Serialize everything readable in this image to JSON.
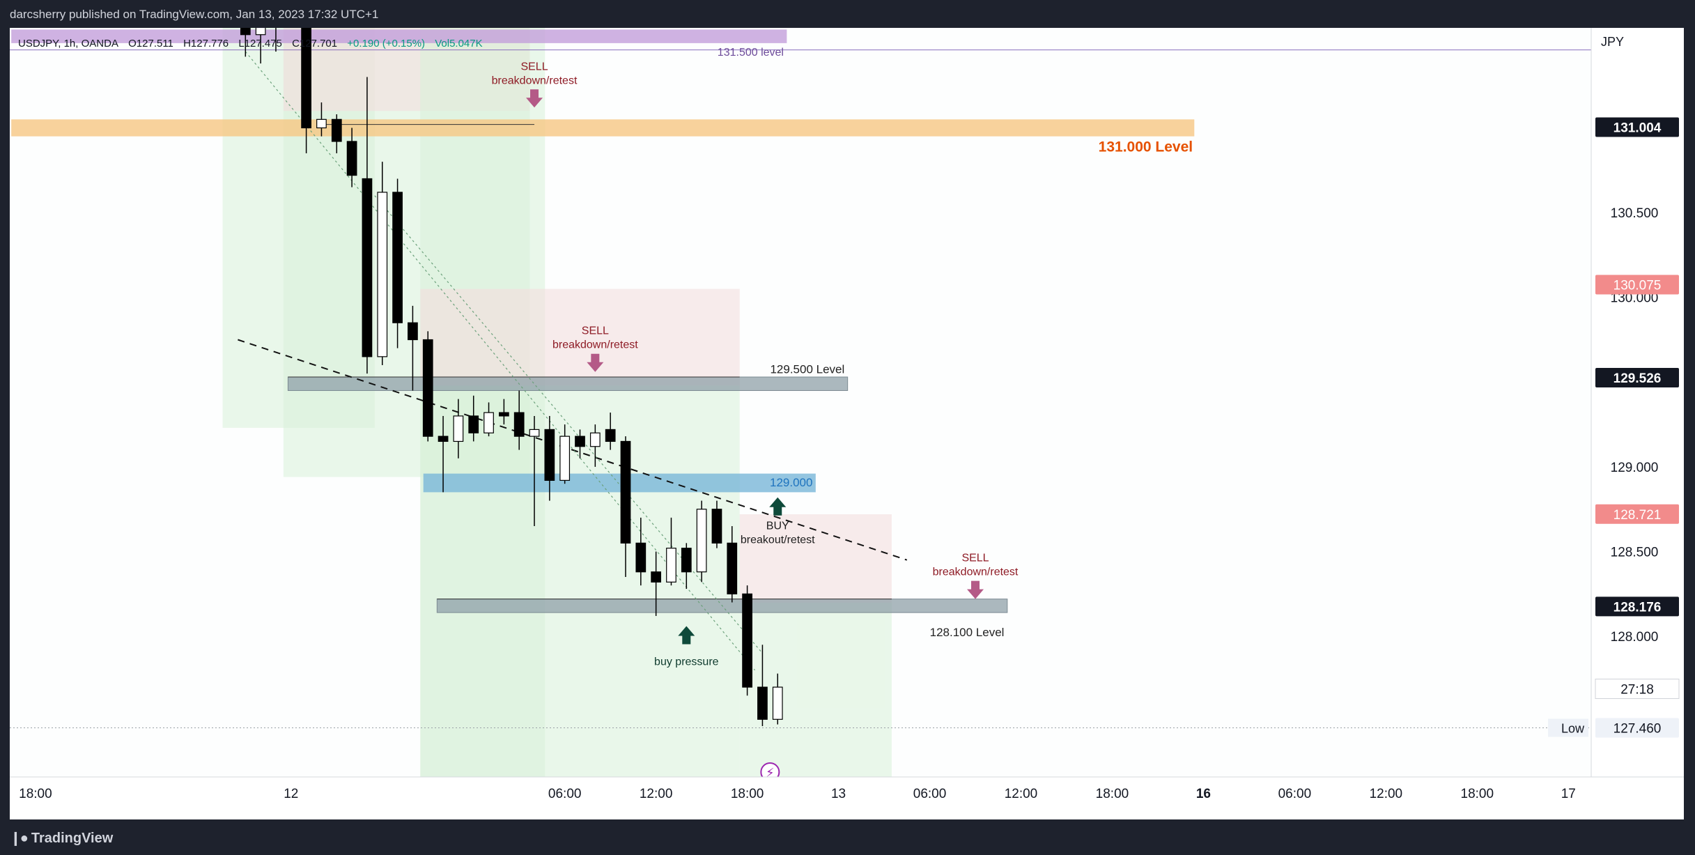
{
  "header": {
    "published_line": "darcsherry published on TradingView.com, Jan 13, 2023 17:32 UTC+1"
  },
  "legend": {
    "symbol": "USDJPY, 1h, OANDA",
    "open": "O127.511",
    "high": "H127.776",
    "low": "L127.475",
    "close": "C127.701",
    "change": "+0.190 (+0.15%)",
    "volume": "Vol5.047K"
  },
  "footer": {
    "brand": "TradingView"
  },
  "colors": {
    "bull_body": "#ffffff",
    "bear_body": "#000000",
    "resistance_zone": "#f6c783",
    "support_zone": "#8fa0a8",
    "breakout_zone": "#79b7d8",
    "purple_zone": "#c39fdb",
    "green_band": "#d8f1d8",
    "red_band": "#f3dede",
    "sell_text": "#8e1b25",
    "buy_text": "#0f3b2e",
    "sell_arrow": "#b45a87",
    "buy_arrow": "#0e4a3a",
    "level_orange": "#e65100",
    "level_blue": "#1e73be"
  },
  "chart_data": {
    "type": "candlestick",
    "symbol": "USDJPY",
    "interval": "1h",
    "currency_label": "JPY",
    "ylim": [
      127.17,
      131.59
    ],
    "y_ticks": [
      128.0,
      128.5,
      129.0,
      129.5,
      130.0,
      130.5
    ],
    "x_ticks": [
      "18:00",
      "12",
      "06:00",
      "12:00",
      "18:00",
      "13",
      "06:00",
      "12:00",
      "18:00",
      "16",
      "06:00",
      "12:00",
      "18:00",
      "17"
    ],
    "x_tick_hours": [
      -6,
      12,
      30,
      36,
      42,
      48,
      54,
      60,
      66,
      72,
      78,
      84,
      90,
      96
    ],
    "x_range_hours": [
      -6.5,
      97.5
    ],
    "candles": [
      {
        "t": 9,
        "o": 131.7,
        "h": 131.78,
        "l": 131.42,
        "c": 131.55
      },
      {
        "t": 10,
        "o": 131.55,
        "h": 131.75,
        "l": 131.38,
        "c": 131.6
      },
      {
        "t": 11,
        "o": 131.6,
        "h": 131.85,
        "l": 131.45,
        "c": 131.7
      },
      {
        "t": 13,
        "o": 131.6,
        "h": 131.8,
        "l": 130.85,
        "c": 131.0
      },
      {
        "t": 14,
        "o": 131.0,
        "h": 131.15,
        "l": 130.95,
        "c": 131.05
      },
      {
        "t": 15,
        "o": 131.05,
        "h": 131.08,
        "l": 130.85,
        "c": 130.92
      },
      {
        "t": 16,
        "o": 130.92,
        "h": 131.0,
        "l": 130.65,
        "c": 130.72
      },
      {
        "t": 17,
        "o": 130.7,
        "h": 131.3,
        "l": 129.55,
        "c": 129.65
      },
      {
        "t": 18,
        "o": 129.65,
        "h": 130.8,
        "l": 129.6,
        "c": 130.62
      },
      {
        "t": 19,
        "o": 130.62,
        "h": 130.7,
        "l": 129.7,
        "c": 129.85
      },
      {
        "t": 20,
        "o": 129.85,
        "h": 129.95,
        "l": 129.45,
        "c": 129.75
      },
      {
        "t": 21,
        "o": 129.75,
        "h": 129.8,
        "l": 129.15,
        "c": 129.18
      },
      {
        "t": 22,
        "o": 129.18,
        "h": 129.3,
        "l": 128.85,
        "c": 129.15
      },
      {
        "t": 23,
        "o": 129.15,
        "h": 129.4,
        "l": 129.05,
        "c": 129.3
      },
      {
        "t": 24,
        "o": 129.3,
        "h": 129.42,
        "l": 129.15,
        "c": 129.2
      },
      {
        "t": 25,
        "o": 129.2,
        "h": 129.38,
        "l": 129.18,
        "c": 129.32
      },
      {
        "t": 26,
        "o": 129.32,
        "h": 129.4,
        "l": 129.25,
        "c": 129.3
      },
      {
        "t": 27,
        "o": 129.32,
        "h": 129.45,
        "l": 129.1,
        "c": 129.18
      },
      {
        "t": 28,
        "o": 129.18,
        "h": 129.3,
        "l": 128.65,
        "c": 129.22
      },
      {
        "t": 29,
        "o": 129.22,
        "h": 129.3,
        "l": 128.8,
        "c": 128.92
      },
      {
        "t": 30,
        "o": 128.92,
        "h": 129.25,
        "l": 128.9,
        "c": 129.18
      },
      {
        "t": 31,
        "o": 129.18,
        "h": 129.22,
        "l": 129.05,
        "c": 129.12
      },
      {
        "t": 32,
        "o": 129.12,
        "h": 129.25,
        "l": 129.0,
        "c": 129.2
      },
      {
        "t": 33,
        "o": 129.22,
        "h": 129.32,
        "l": 129.1,
        "c": 129.15
      },
      {
        "t": 34,
        "o": 129.15,
        "h": 129.18,
        "l": 128.35,
        "c": 128.55
      },
      {
        "t": 35,
        "o": 128.55,
        "h": 128.7,
        "l": 128.3,
        "c": 128.38
      },
      {
        "t": 36,
        "o": 128.38,
        "h": 128.5,
        "l": 128.12,
        "c": 128.32
      },
      {
        "t": 37,
        "o": 128.32,
        "h": 128.7,
        "l": 128.3,
        "c": 128.52
      },
      {
        "t": 38,
        "o": 128.52,
        "h": 128.55,
        "l": 128.28,
        "c": 128.38
      },
      {
        "t": 39,
        "o": 128.38,
        "h": 128.8,
        "l": 128.32,
        "c": 128.75
      },
      {
        "t": 40,
        "o": 128.75,
        "h": 128.8,
        "l": 128.52,
        "c": 128.55
      },
      {
        "t": 41,
        "o": 128.55,
        "h": 128.65,
        "l": 128.2,
        "c": 128.25
      },
      {
        "t": 42,
        "o": 128.25,
        "h": 128.3,
        "l": 127.65,
        "c": 127.7
      },
      {
        "t": 43,
        "o": 127.7,
        "h": 127.95,
        "l": 127.47,
        "c": 127.51
      },
      {
        "t": 44,
        "o": 127.51,
        "h": 127.78,
        "l": 127.48,
        "c": 127.7
      }
    ],
    "levels": [
      {
        "label": "131.500 level",
        "price": 131.5
      },
      {
        "label": "131.000 Level",
        "price": 131.0
      },
      {
        "label": "129.500 Level",
        "price": 129.5
      },
      {
        "label": "129.000",
        "price": 129.0
      },
      {
        "label": "128.100 Level",
        "price": 128.1
      }
    ],
    "zones": [
      {
        "kind": "purple",
        "t0": -6.4,
        "t1": 44.6,
        "y0": 131.58,
        "y1": 131.5
      },
      {
        "kind": "resistance",
        "t0": -6.4,
        "t1": 71.4,
        "y0": 131.05,
        "y1": 130.95
      },
      {
        "kind": "support",
        "t0": 11.8,
        "t1": 48.6,
        "y0": 129.53,
        "y1": 129.45
      },
      {
        "kind": "breakout",
        "t0": 20.7,
        "t1": 46.5,
        "y0": 128.96,
        "y1": 128.85
      },
      {
        "kind": "support",
        "t0": 21.6,
        "t1": 59.1,
        "y0": 128.22,
        "y1": 128.14
      }
    ],
    "bands": [
      {
        "kind": "green",
        "t0": 7.5,
        "t1": 17.5,
        "y0": 131.62,
        "y1": 129.23
      },
      {
        "kind": "green",
        "t0": 11.5,
        "t1": 27.7,
        "y0": 131.62,
        "y1": 128.94
      },
      {
        "kind": "red",
        "t0": 11.5,
        "t1": 27.7,
        "y0": 131.62,
        "y1": 131.1
      },
      {
        "kind": "green",
        "t0": 20.5,
        "t1": 28.7,
        "y0": 131.62,
        "y1": 127.17
      },
      {
        "kind": "green",
        "t0": 20.5,
        "t1": 41.5,
        "y0": 129.48,
        "y1": 127.17
      },
      {
        "kind": "red",
        "t0": 20.5,
        "t1": 41.5,
        "y0": 130.05,
        "y1": 129.48
      },
      {
        "kind": "green",
        "t0": 41.5,
        "t1": 51.5,
        "y0": 128.2,
        "y1": 127.17
      },
      {
        "kind": "red",
        "t0": 41.5,
        "t1": 51.5,
        "y0": 128.72,
        "y1": 128.2
      }
    ],
    "trendlines": [
      {
        "style": "dashed",
        "t0": 8.5,
        "y0": 129.75,
        "t1": 52.5,
        "y1": 128.45
      },
      {
        "style": "dotted",
        "t0": 9.0,
        "y0": 131.45,
        "t1": 42.5,
        "y1": 127.8
      },
      {
        "style": "dotted",
        "t0": 17.5,
        "y0": 130.6,
        "t1": 43.0,
        "y1": 127.9
      }
    ],
    "annotations": [
      {
        "text1": "SELL",
        "text2": "breakdown/retest",
        "direction": "sell",
        "t": 28.0,
        "arrow_price": 131.12
      },
      {
        "text1": "SELL",
        "text2": "breakdown/retest",
        "direction": "sell",
        "t": 32.0,
        "arrow_price": 129.56
      },
      {
        "text1": "BUY",
        "text2": "breakout/retest",
        "direction": "buy",
        "t": 44.0,
        "arrow_price": 128.82
      },
      {
        "text1": "SELL",
        "text2": "breakdown/retest",
        "direction": "sell",
        "t": 57.0,
        "arrow_price": 128.22
      },
      {
        "text1": "buy pressure",
        "text2": "",
        "direction": "buy",
        "t": 38.0,
        "arrow_price": 128.06
      }
    ],
    "price_labels": [
      {
        "value": "131.004",
        "price": 131.004,
        "style": "dark"
      },
      {
        "value": "130.075",
        "price": 130.075,
        "style": "red"
      },
      {
        "value": "129.526",
        "price": 129.526,
        "style": "dark"
      },
      {
        "value": "128.721",
        "price": 128.721,
        "style": "red"
      },
      {
        "value": "128.176",
        "price": 128.176,
        "style": "dark"
      },
      {
        "value": "127.460",
        "price": 127.46,
        "style": "light"
      }
    ],
    "countdown": {
      "text": "27:18",
      "price": 127.69
    },
    "low_marker": {
      "label": "Low",
      "price": 127.46
    }
  }
}
